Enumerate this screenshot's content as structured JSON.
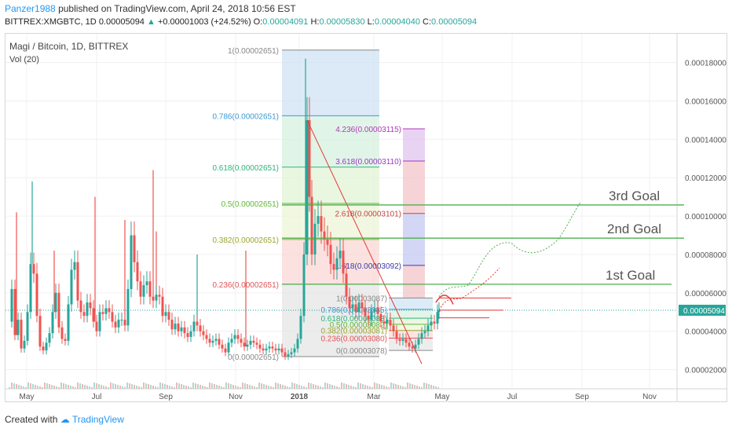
{
  "header": {
    "author": "Panzer1988",
    "published_text": "published on TradingView.com, April 24, 2018 10:56 EST",
    "symbol": "BITTREX:XMGBTC, 1D",
    "last": "0.00005094",
    "change": "+0.00001003 (+24.52%)",
    "o_label": "O:",
    "o_val": "0.00004091",
    "h_label": "H:",
    "h_val": "0.00005830",
    "l_label": "L:",
    "l_val": "0.00004040",
    "c_label": "C:",
    "c_val": "0.00005094"
  },
  "legend": {
    "title": "Magi / Bitcoin, 1D, BITTREX",
    "volume": "Vol (20)"
  },
  "footer": {
    "created_with": "Created with",
    "brand": "TradingView"
  },
  "colors": {
    "up": "#26a69a",
    "down": "#ef5350",
    "goal_line": "#4caf50",
    "trend": "#e53935"
  },
  "chart_data": {
    "type": "line",
    "x_ticks": [
      "May",
      "Jul",
      "Sep",
      "Nov",
      "2018",
      "Mar",
      "May",
      "Jul",
      "Sep",
      "Nov"
    ],
    "y_ticks": [
      "0.00018000",
      "0.00016000",
      "0.00014000",
      "0.00012000",
      "0.00010000",
      "0.00008000",
      "0.00006000",
      "0.00004000",
      "0.00002000"
    ],
    "ylim": [
      1e-05,
      0.000195
    ],
    "current_price_label": "0.00005094",
    "current_price": 5.094e-05,
    "goals": [
      {
        "label": "1st Goal",
        "price": 6.45e-05
      },
      {
        "label": "2nd Goal",
        "price": 8.85e-05
      },
      {
        "label": "3rd Goal",
        "price": 0.0001058
      }
    ],
    "fib_retracement_1": [
      {
        "label": "1(0.00002651)",
        "price": 0.0001865
      },
      {
        "label": "0.786(0.00002651)",
        "price": 0.0001523
      },
      {
        "label": "0.618(0.00002651)",
        "price": 0.0001255
      },
      {
        "label": "0.5(0.00002651)",
        "price": 0.0001066
      },
      {
        "label": "0.382(0.00002651)",
        "price": 8.78e-05
      },
      {
        "label": "0.236(0.00002651)",
        "price": 6.45e-05
      },
      {
        "label": "0(0.00002651)",
        "price": 2.68e-05
      }
    ],
    "fib_extension": [
      {
        "label": "4.236(0.00003115)",
        "price": 0.0001455
      },
      {
        "label": "3.618(0.00003110)",
        "price": 0.0001287
      },
      {
        "label": "2.618(0.00003101)",
        "price": 0.0001014
      },
      {
        "label": "1.618(0.00003092)",
        "price": 7.43e-05
      }
    ],
    "fib_retracement_2": [
      {
        "label": "1(0.00003087)",
        "price": 5.73e-05
      },
      {
        "label": "0.786(0.00003085)",
        "price": 5.14e-05
      },
      {
        "label": "0.618(0.00003083)",
        "price": 4.68e-05
      },
      {
        "label": "0.5(0.00003082)",
        "price": 4.36e-05
      },
      {
        "label": "0.382(0.00003081)",
        "price": 4.04e-05
      },
      {
        "label": "0.236(0.00003080)",
        "price": 3.64e-05
      },
      {
        "label": "0(0.00003078)",
        "price": 3e-05
      }
    ],
    "price_series": [
      [
        0,
        4.5e-05
      ],
      [
        4,
        6.2e-05
      ],
      [
        8,
        3.8e-05
      ],
      [
        12,
        4.6e-05
      ],
      [
        16,
        3.1e-05
      ],
      [
        20,
        3.5e-05
      ],
      [
        24,
        5e-05
      ],
      [
        28,
        7.5e-05
      ],
      [
        32,
        7e-05
      ],
      [
        36,
        4.8e-05
      ],
      [
        40,
        3.2e-05
      ],
      [
        44,
        3e-05
      ],
      [
        48,
        3.4e-05
      ],
      [
        52,
        3.9e-05
      ],
      [
        56,
        5e-05
      ],
      [
        60,
        6e-05
      ],
      [
        64,
        4.2e-05
      ],
      [
        68,
        3.6e-05
      ],
      [
        72,
        3.5e-05
      ],
      [
        76,
        5.4e-05
      ],
      [
        80,
        7.2e-05
      ],
      [
        84,
        7.6e-05
      ],
      [
        88,
        5.6e-05
      ],
      [
        92,
        5e-05
      ],
      [
        96,
        4.8e-05
      ],
      [
        100,
        5.5e-05
      ],
      [
        104,
        5.2e-05
      ],
      [
        108,
        4.5e-05
      ],
      [
        112,
        4e-05
      ],
      [
        116,
        5e-05
      ],
      [
        120,
        4.9e-05
      ],
      [
        124,
        5.2e-05
      ],
      [
        128,
        5e-05
      ],
      [
        132,
        4.5e-05
      ],
      [
        136,
        4.2e-05
      ],
      [
        140,
        4.6e-05
      ],
      [
        144,
        4.6e-05
      ],
      [
        148,
        4.3e-05
      ],
      [
        152,
        6.2e-05
      ],
      [
        156,
        9e-05
      ],
      [
        160,
        7.6e-05
      ],
      [
        164,
        6.6e-05
      ],
      [
        168,
        5.8e-05
      ],
      [
        172,
        6.4e-05
      ],
      [
        176,
        6.6e-05
      ],
      [
        180,
        5.8e-05
      ],
      [
        184,
        5.6e-05
      ],
      [
        188,
        5.9e-05
      ],
      [
        192,
        5.8e-05
      ],
      [
        196,
        4.8e-05
      ],
      [
        200,
        5e-05
      ],
      [
        204,
        4.6e-05
      ],
      [
        208,
        4.1e-05
      ],
      [
        212,
        4.4e-05
      ],
      [
        216,
        4e-05
      ],
      [
        220,
        4.2e-05
      ],
      [
        224,
        3.9e-05
      ],
      [
        228,
        3.7e-05
      ],
      [
        232,
        4e-05
      ],
      [
        236,
        4.5e-05
      ],
      [
        240,
        4.3e-05
      ],
      [
        244,
        4e-05
      ],
      [
        248,
        3.8e-05
      ],
      [
        252,
        3.6e-05
      ],
      [
        256,
        3.4e-05
      ],
      [
        260,
        3.5e-05
      ],
      [
        264,
        3.6e-05
      ],
      [
        268,
        3.3e-05
      ],
      [
        272,
        3.1e-05
      ],
      [
        276,
        2.9e-05
      ],
      [
        280,
        3.4e-05
      ],
      [
        284,
        3.6e-05
      ],
      [
        288,
        3.8e-05
      ],
      [
        292,
        3.6e-05
      ],
      [
        296,
        3.4e-05
      ],
      [
        300,
        3.2e-05
      ],
      [
        304,
        3.3e-05
      ],
      [
        308,
        3.5e-05
      ],
      [
        312,
        3.4e-05
      ],
      [
        316,
        3.3e-05
      ],
      [
        320,
        3.1e-05
      ],
      [
        324,
        3e-05
      ],
      [
        328,
        3.1e-05
      ],
      [
        332,
        3.2e-05
      ],
      [
        336,
        3.1e-05
      ],
      [
        340,
        3e-05
      ],
      [
        344,
        3.1e-05
      ],
      [
        348,
        2.9e-05
      ],
      [
        352,
        2.7e-05
      ],
      [
        356,
        2.8e-05
      ],
      [
        360,
        2.9e-05
      ],
      [
        364,
        3.1e-05
      ],
      [
        368,
        3.6e-05
      ],
      [
        372,
        4.8e-05
      ],
      [
        376,
        8e-05
      ],
      [
        380,
        0.00015
      ],
      [
        383,
        0.00011
      ],
      [
        386,
        8e-05
      ],
      [
        390,
        9.6e-05
      ],
      [
        394,
        0.0001
      ],
      [
        398,
        9.2e-05
      ],
      [
        402,
        8.8e-05
      ],
      [
        406,
        8.5e-05
      ],
      [
        410,
        7.5e-05
      ],
      [
        414,
        7.2e-05
      ],
      [
        418,
        7.8e-05
      ],
      [
        422,
        8.2e-05
      ],
      [
        426,
        7e-05
      ],
      [
        430,
        5.8e-05
      ],
      [
        434,
        5.2e-05
      ],
      [
        438,
        5.4e-05
      ],
      [
        442,
        5e-05
      ],
      [
        446,
        5.5e-05
      ],
      [
        450,
        5.2e-05
      ],
      [
        454,
        4.8e-05
      ],
      [
        458,
        4.6e-05
      ],
      [
        462,
        5e-05
      ],
      [
        466,
        5.2e-05
      ],
      [
        470,
        4.9e-05
      ],
      [
        474,
        4.5e-05
      ],
      [
        478,
        4.4e-05
      ],
      [
        482,
        4.6e-05
      ],
      [
        486,
        4.3e-05
      ],
      [
        490,
        4e-05
      ],
      [
        494,
        3.6e-05
      ],
      [
        498,
        3.5e-05
      ],
      [
        502,
        3.6e-05
      ],
      [
        506,
        3.4e-05
      ],
      [
        510,
        3.2e-05
      ],
      [
        514,
        3.1e-05
      ],
      [
        518,
        3.3e-05
      ],
      [
        522,
        3.6e-05
      ],
      [
        526,
        3.9e-05
      ],
      [
        530,
        4e-05
      ],
      [
        534,
        4.3e-05
      ],
      [
        538,
        4.5e-05
      ],
      [
        542,
        4.4e-05
      ],
      [
        546,
        5e-05
      ],
      [
        548,
        5.1e-05
      ]
    ],
    "spikes": [
      [
        10,
        0.000102
      ],
      [
        30,
        0.000118
      ],
      [
        58,
        8.2e-05
      ],
      [
        110,
        0.00011
      ],
      [
        148,
        9.8e-05
      ],
      [
        184,
        0.000124
      ],
      [
        188,
        9.2e-05
      ],
      [
        240,
        8e-05
      ],
      [
        302,
        8.2e-05
      ],
      [
        378,
        0.000182
      ],
      [
        382,
        0.00015
      ]
    ]
  }
}
